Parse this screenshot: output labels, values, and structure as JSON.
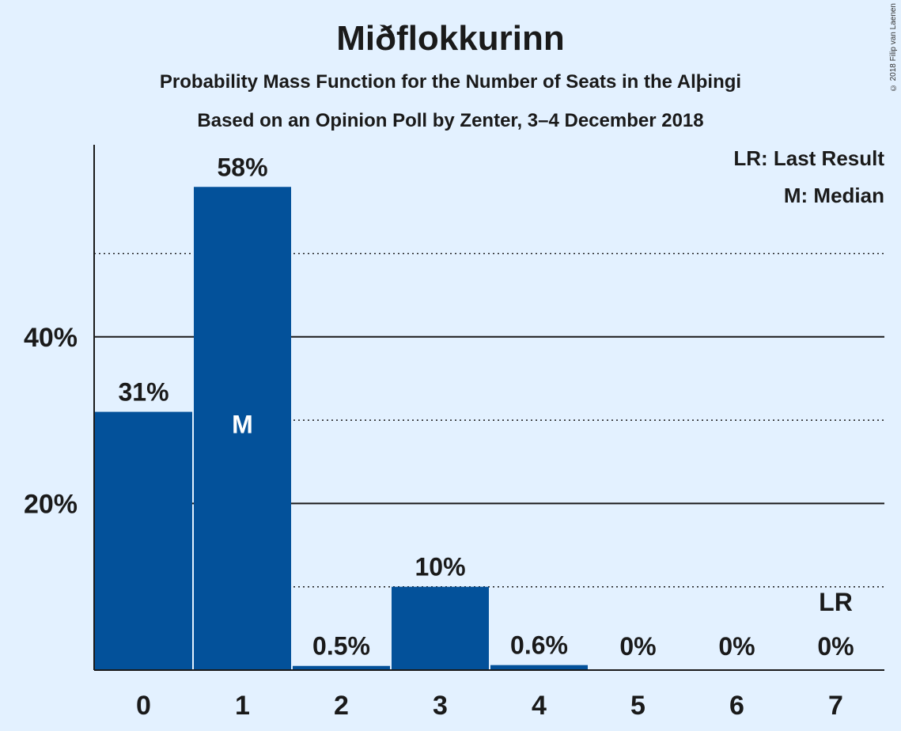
{
  "header": {
    "title": "Miðflokkurinn",
    "subtitle": "Probability Mass Function for the Number of Seats in the Alþingi",
    "source": "Based on an Opinion Poll by Zenter, 3–4 December 2018",
    "copyright": "© 2018 Filip van Laenen"
  },
  "legend": {
    "last_result": "LR: Last Result",
    "median": "M: Median"
  },
  "colors": {
    "background": "#e3f1ff",
    "bar": "#03519a",
    "text": "#1a1a1a"
  },
  "chart_data": {
    "type": "bar",
    "title": "Miðflokkurinn",
    "xlabel": "",
    "ylabel": "",
    "categories": [
      "0",
      "1",
      "2",
      "3",
      "4",
      "5",
      "6",
      "7"
    ],
    "values": [
      31,
      58,
      0.5,
      10,
      0.6,
      0,
      0,
      0
    ],
    "value_labels": [
      "31%",
      "58%",
      "0.5%",
      "10%",
      "0.6%",
      "0%",
      "0%",
      "0%"
    ],
    "yticks": [
      20,
      40
    ],
    "ytick_labels": [
      "20%",
      "40%"
    ],
    "minor_gridlines": [
      10,
      30,
      50
    ],
    "ylim": [
      0,
      63
    ],
    "median_index": 1,
    "median_marker": "M",
    "last_result_index": 7,
    "last_result_marker": "LR"
  }
}
